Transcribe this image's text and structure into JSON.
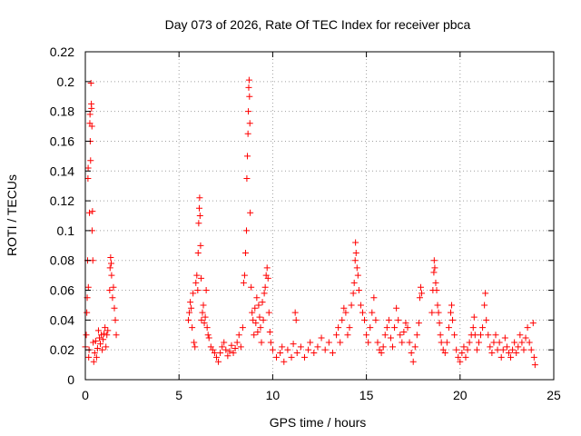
{
  "chart_data": {
    "type": "scatter",
    "title": "Day 073 of 2026, Rate Of TEC Index for receiver pbca",
    "xlabel": "GPS time / hours",
    "ylabel": "ROTI / TECUs",
    "xlim": [
      0,
      25
    ],
    "ylim": [
      0,
      0.22
    ],
    "xticks": [
      "0",
      "5",
      "10",
      "15",
      "20",
      "25"
    ],
    "yticks": [
      "0",
      "0.02",
      "0.04",
      "0.06",
      "0.08",
      "0.1",
      "0.12",
      "0.14",
      "0.16",
      "0.18",
      "0.2",
      "0.22"
    ],
    "grid": true,
    "marker": "+",
    "color": "#ff0000",
    "series": [
      {
        "points": [
          [
            0.0,
            0.022
          ],
          [
            0.05,
            0.03
          ],
          [
            0.08,
            0.045
          ],
          [
            0.1,
            0.055
          ],
          [
            0.12,
            0.08
          ],
          [
            0.14,
            0.135
          ],
          [
            0.15,
            0.142
          ],
          [
            0.16,
            0.062
          ],
          [
            0.18,
            0.015
          ],
          [
            0.2,
            0.02
          ],
          [
            0.22,
            0.112
          ],
          [
            0.24,
            0.172
          ],
          [
            0.25,
            0.178
          ],
          [
            0.26,
            0.16
          ],
          [
            0.28,
            0.147
          ],
          [
            0.3,
            0.199
          ],
          [
            0.32,
            0.185
          ],
          [
            0.33,
            0.182
          ],
          [
            0.35,
            0.17
          ],
          [
            0.36,
            0.1
          ],
          [
            0.38,
            0.113
          ],
          [
            0.4,
            0.08
          ],
          [
            0.42,
            0.025
          ],
          [
            0.45,
            0.012
          ],
          [
            0.5,
            0.018
          ],
          [
            0.55,
            0.026
          ],
          [
            0.6,
            0.015
          ],
          [
            0.65,
            0.021
          ],
          [
            0.7,
            0.033
          ],
          [
            0.75,
            0.028
          ],
          [
            0.8,
            0.024
          ],
          [
            0.85,
            0.03
          ],
          [
            0.9,
            0.02
          ],
          [
            0.95,
            0.027
          ],
          [
            1.0,
            0.031
          ],
          [
            1.05,
            0.035
          ],
          [
            1.1,
            0.022
          ],
          [
            1.15,
            0.03
          ],
          [
            1.2,
            0.033
          ],
          [
            1.3,
            0.06
          ],
          [
            1.32,
            0.075
          ],
          [
            1.35,
            0.082
          ],
          [
            1.38,
            0.078
          ],
          [
            1.4,
            0.07
          ],
          [
            1.45,
            0.055
          ],
          [
            1.5,
            0.062
          ],
          [
            1.55,
            0.048
          ],
          [
            1.6,
            0.04
          ],
          [
            1.65,
            0.03
          ],
          [
            5.5,
            0.04
          ],
          [
            5.55,
            0.045
          ],
          [
            5.6,
            0.052
          ],
          [
            5.65,
            0.048
          ],
          [
            5.7,
            0.035
          ],
          [
            5.75,
            0.058
          ],
          [
            5.8,
            0.025
          ],
          [
            5.85,
            0.022
          ],
          [
            5.9,
            0.065
          ],
          [
            5.95,
            0.07
          ],
          [
            6.0,
            0.06
          ],
          [
            6.02,
            0.085
          ],
          [
            6.05,
            0.105
          ],
          [
            6.08,
            0.115
          ],
          [
            6.1,
            0.122
          ],
          [
            6.12,
            0.11
          ],
          [
            6.15,
            0.09
          ],
          [
            6.18,
            0.068
          ],
          [
            6.2,
            0.04
          ],
          [
            6.25,
            0.045
          ],
          [
            6.3,
            0.05
          ],
          [
            6.35,
            0.038
          ],
          [
            6.4,
            0.042
          ],
          [
            6.45,
            0.06
          ],
          [
            6.5,
            0.035
          ],
          [
            6.55,
            0.03
          ],
          [
            6.6,
            0.028
          ],
          [
            6.7,
            0.022
          ],
          [
            6.8,
            0.02
          ],
          [
            6.9,
            0.018
          ],
          [
            7.0,
            0.015
          ],
          [
            7.1,
            0.012
          ],
          [
            7.2,
            0.018
          ],
          [
            7.3,
            0.022
          ],
          [
            7.4,
            0.025
          ],
          [
            7.5,
            0.02
          ],
          [
            7.6,
            0.016
          ],
          [
            7.7,
            0.019
          ],
          [
            7.8,
            0.023
          ],
          [
            7.9,
            0.018
          ],
          [
            8.0,
            0.021
          ],
          [
            8.1,
            0.025
          ],
          [
            8.2,
            0.03
          ],
          [
            8.3,
            0.022
          ],
          [
            8.4,
            0.035
          ],
          [
            8.45,
            0.065
          ],
          [
            8.5,
            0.07
          ],
          [
            8.55,
            0.085
          ],
          [
            8.6,
            0.1
          ],
          [
            8.62,
            0.135
          ],
          [
            8.65,
            0.15
          ],
          [
            8.68,
            0.165
          ],
          [
            8.7,
            0.18
          ],
          [
            8.72,
            0.196
          ],
          [
            8.74,
            0.201
          ],
          [
            8.76,
            0.19
          ],
          [
            8.78,
            0.172
          ],
          [
            8.8,
            0.112
          ],
          [
            8.85,
            0.062
          ],
          [
            8.9,
            0.045
          ],
          [
            8.95,
            0.04
          ],
          [
            9.0,
            0.03
          ],
          [
            9.05,
            0.048
          ],
          [
            9.1,
            0.038
          ],
          [
            9.15,
            0.055
          ],
          [
            9.2,
            0.032
          ],
          [
            9.25,
            0.05
          ],
          [
            9.3,
            0.042
          ],
          [
            9.35,
            0.035
          ],
          [
            9.4,
            0.025
          ],
          [
            9.45,
            0.052
          ],
          [
            9.5,
            0.04
          ],
          [
            9.55,
            0.058
          ],
          [
            9.6,
            0.062
          ],
          [
            9.65,
            0.07
          ],
          [
            9.7,
            0.075
          ],
          [
            9.75,
            0.068
          ],
          [
            9.8,
            0.045
          ],
          [
            9.85,
            0.032
          ],
          [
            9.9,
            0.025
          ],
          [
            10.0,
            0.02
          ],
          [
            10.2,
            0.015
          ],
          [
            10.4,
            0.018
          ],
          [
            10.5,
            0.022
          ],
          [
            10.6,
            0.012
          ],
          [
            10.8,
            0.02
          ],
          [
            11.0,
            0.015
          ],
          [
            11.1,
            0.024
          ],
          [
            11.2,
            0.045
          ],
          [
            11.25,
            0.04
          ],
          [
            11.3,
            0.018
          ],
          [
            11.5,
            0.022
          ],
          [
            11.7,
            0.015
          ],
          [
            11.9,
            0.02
          ],
          [
            12.0,
            0.025
          ],
          [
            12.2,
            0.018
          ],
          [
            12.4,
            0.022
          ],
          [
            12.6,
            0.028
          ],
          [
            12.8,
            0.02
          ],
          [
            13.0,
            0.025
          ],
          [
            13.2,
            0.018
          ],
          [
            13.4,
            0.03
          ],
          [
            13.5,
            0.035
          ],
          [
            13.6,
            0.025
          ],
          [
            13.7,
            0.04
          ],
          [
            13.8,
            0.048
          ],
          [
            13.9,
            0.045
          ],
          [
            14.0,
            0.03
          ],
          [
            14.1,
            0.035
          ],
          [
            14.2,
            0.05
          ],
          [
            14.3,
            0.058
          ],
          [
            14.35,
            0.065
          ],
          [
            14.4,
            0.08
          ],
          [
            14.42,
            0.092
          ],
          [
            14.45,
            0.085
          ],
          [
            14.5,
            0.075
          ],
          [
            14.55,
            0.07
          ],
          [
            14.6,
            0.06
          ],
          [
            14.7,
            0.05
          ],
          [
            14.8,
            0.045
          ],
          [
            14.9,
            0.04
          ],
          [
            15.0,
            0.03
          ],
          [
            15.1,
            0.025
          ],
          [
            15.2,
            0.035
          ],
          [
            15.3,
            0.045
          ],
          [
            15.4,
            0.055
          ],
          [
            15.5,
            0.04
          ],
          [
            15.6,
            0.025
          ],
          [
            15.7,
            0.02
          ],
          [
            15.8,
            0.018
          ],
          [
            15.9,
            0.022
          ],
          [
            16.0,
            0.03
          ],
          [
            16.1,
            0.035
          ],
          [
            16.2,
            0.04
          ],
          [
            16.3,
            0.028
          ],
          [
            16.4,
            0.022
          ],
          [
            16.5,
            0.035
          ],
          [
            16.6,
            0.048
          ],
          [
            16.7,
            0.04
          ],
          [
            16.8,
            0.03
          ],
          [
            16.9,
            0.025
          ],
          [
            17.0,
            0.032
          ],
          [
            17.1,
            0.038
          ],
          [
            17.2,
            0.035
          ],
          [
            17.3,
            0.025
          ],
          [
            17.4,
            0.018
          ],
          [
            17.5,
            0.012
          ],
          [
            17.6,
            0.022
          ],
          [
            17.7,
            0.03
          ],
          [
            17.8,
            0.038
          ],
          [
            17.85,
            0.055
          ],
          [
            17.9,
            0.062
          ],
          [
            17.95,
            0.058
          ],
          [
            18.5,
            0.045
          ],
          [
            18.55,
            0.06
          ],
          [
            18.6,
            0.072
          ],
          [
            18.62,
            0.08
          ],
          [
            18.65,
            0.075
          ],
          [
            18.7,
            0.065
          ],
          [
            18.75,
            0.06
          ],
          [
            18.8,
            0.05
          ],
          [
            18.85,
            0.045
          ],
          [
            18.9,
            0.038
          ],
          [
            18.95,
            0.03
          ],
          [
            19.0,
            0.025
          ],
          [
            19.1,
            0.02
          ],
          [
            19.2,
            0.018
          ],
          [
            19.3,
            0.025
          ],
          [
            19.4,
            0.035
          ],
          [
            19.5,
            0.045
          ],
          [
            19.55,
            0.05
          ],
          [
            19.6,
            0.04
          ],
          [
            19.7,
            0.03
          ],
          [
            19.8,
            0.02
          ],
          [
            19.9,
            0.015
          ],
          [
            20.0,
            0.012
          ],
          [
            20.1,
            0.018
          ],
          [
            20.2,
            0.022
          ],
          [
            20.3,
            0.015
          ],
          [
            20.4,
            0.02
          ],
          [
            20.5,
            0.025
          ],
          [
            20.6,
            0.03
          ],
          [
            20.7,
            0.035
          ],
          [
            20.75,
            0.042
          ],
          [
            20.8,
            0.03
          ],
          [
            20.9,
            0.02
          ],
          [
            21.0,
            0.025
          ],
          [
            21.1,
            0.03
          ],
          [
            21.2,
            0.035
          ],
          [
            21.3,
            0.05
          ],
          [
            21.35,
            0.058
          ],
          [
            21.4,
            0.04
          ],
          [
            21.5,
            0.03
          ],
          [
            21.6,
            0.022
          ],
          [
            21.7,
            0.018
          ],
          [
            21.8,
            0.025
          ],
          [
            21.9,
            0.03
          ],
          [
            22.0,
            0.02
          ],
          [
            22.1,
            0.025
          ],
          [
            22.2,
            0.015
          ],
          [
            22.3,
            0.02
          ],
          [
            22.4,
            0.028
          ],
          [
            22.5,
            0.022
          ],
          [
            22.6,
            0.018
          ],
          [
            22.7,
            0.015
          ],
          [
            22.8,
            0.02
          ],
          [
            22.9,
            0.025
          ],
          [
            23.0,
            0.018
          ],
          [
            23.1,
            0.022
          ],
          [
            23.2,
            0.03
          ],
          [
            23.3,
            0.025
          ],
          [
            23.4,
            0.02
          ],
          [
            23.5,
            0.028
          ],
          [
            23.6,
            0.035
          ],
          [
            23.7,
            0.025
          ],
          [
            23.8,
            0.02
          ],
          [
            23.9,
            0.038
          ],
          [
            23.95,
            0.015
          ],
          [
            24.0,
            0.01
          ]
        ]
      }
    ]
  }
}
